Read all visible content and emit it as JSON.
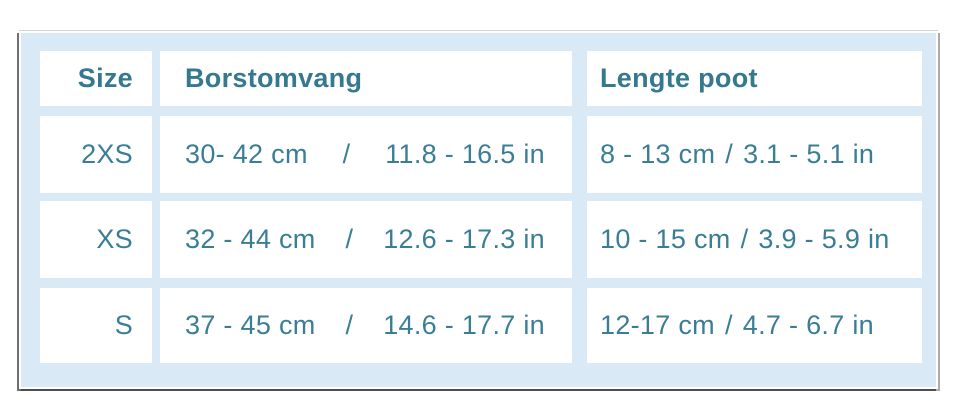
{
  "theme": {
    "page_bg": "#FFFFFF",
    "card_bg": "#D9EAF6",
    "cell_bg": "#FFFFFF",
    "text_color": "#3A7E96",
    "header_text_color": "#35798F"
  },
  "size_chart": {
    "separator": "/",
    "columns": [
      "Size",
      "Borstomvang",
      "Lengte poot"
    ],
    "rows": [
      {
        "size": "2XS",
        "chest_cm": "30- 42 cm",
        "chest_in": "11.8 - 16.5 in",
        "leg_cm": "8 - 13 cm",
        "leg_in": "3.1 - 5.1 in"
      },
      {
        "size": "XS",
        "chest_cm": "32 - 44 cm",
        "chest_in": "12.6 - 17.3 in",
        "leg_cm": "10 - 15 cm",
        "leg_in": "3.9 - 5.9 in"
      },
      {
        "size": "S",
        "chest_cm": "37 - 45 cm",
        "chest_in": "14.6 - 17.7 in",
        "leg_cm": "12-17 cm",
        "leg_in": "4.7 - 6.7 in"
      }
    ]
  },
  "chart_data": {
    "type": "table",
    "title": "",
    "columns": [
      "Size",
      "Borstomvang",
      "Lengte poot"
    ],
    "rows": [
      [
        "2XS",
        "30- 42 cm / 11.8 - 16.5 in",
        "8 - 13 cm / 3.1 - 5.1 in"
      ],
      [
        "XS",
        "32 - 44 cm / 12.6 - 17.3 in",
        "10 - 15 cm / 3.9 - 5.9 in"
      ],
      [
        "S",
        "37 - 45 cm / 14.6 - 17.7 in",
        "12-17 cm / 4.7 - 6.7 in"
      ]
    ]
  }
}
